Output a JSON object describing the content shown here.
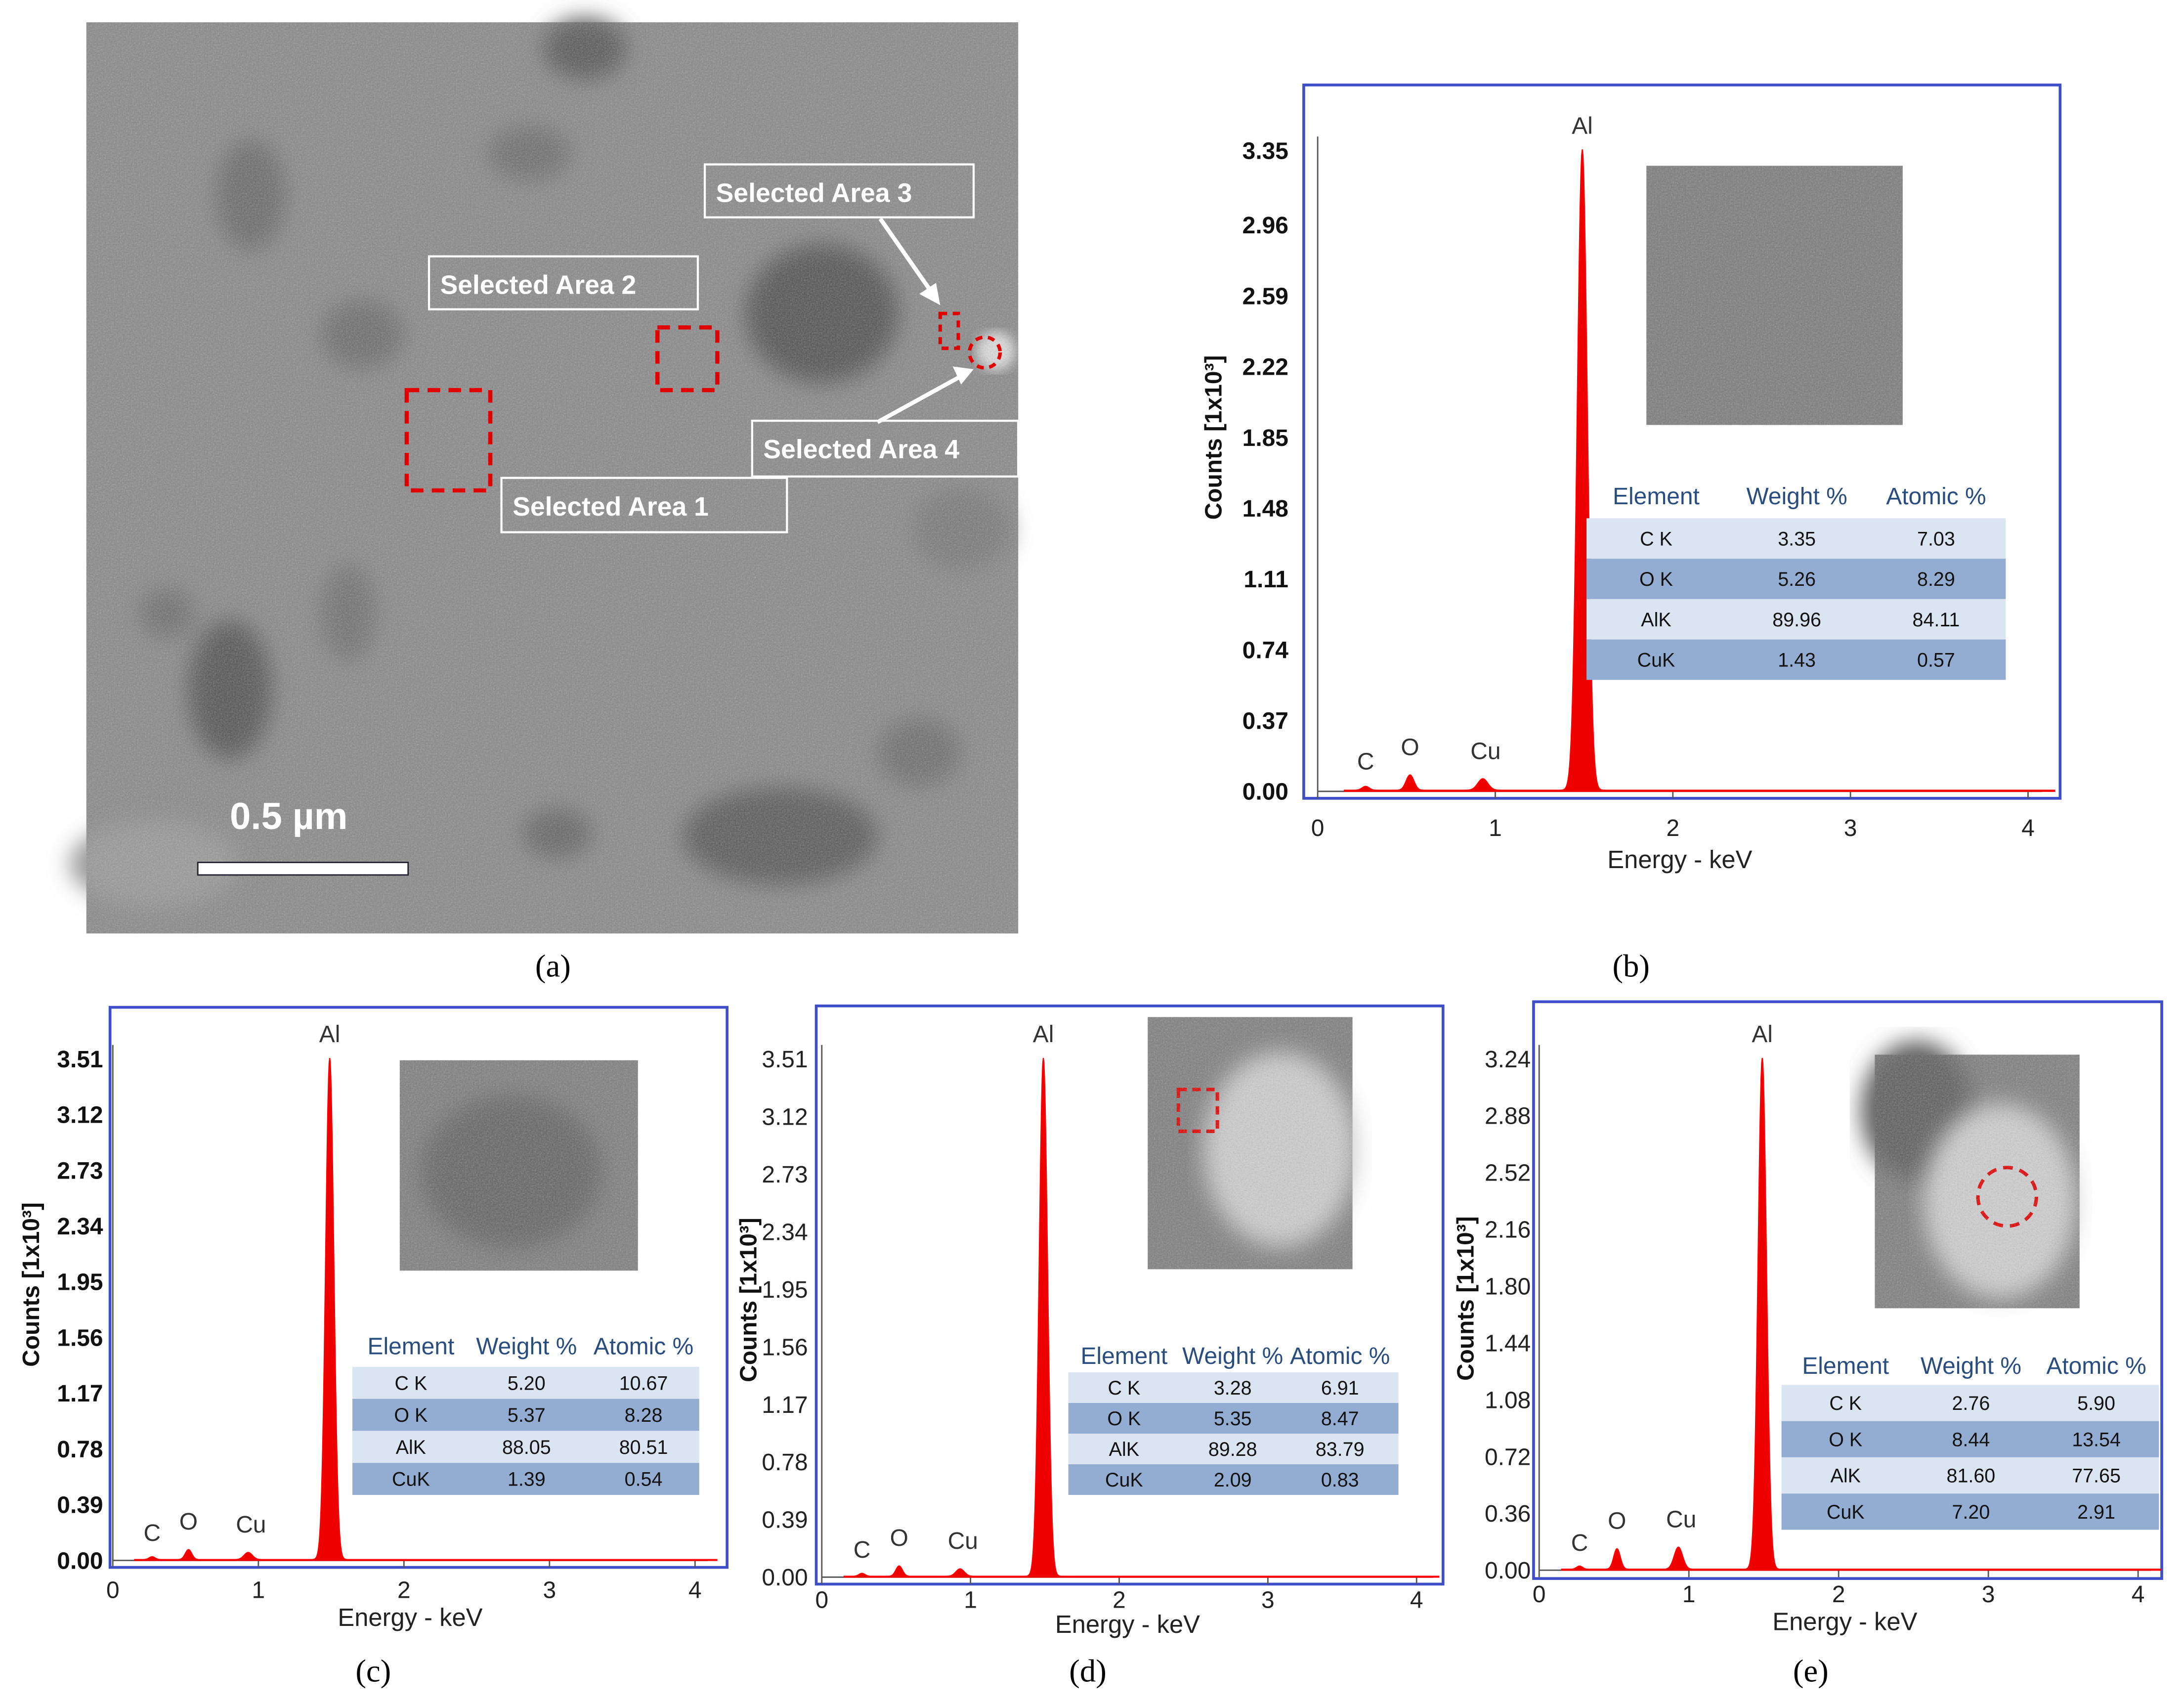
{
  "captions": [
    "(a)",
    "(b)",
    "(c)",
    "(d)",
    "(e)"
  ],
  "sem": {
    "scale_bar_label": "0.5 µm",
    "areas": [
      "Selected Area 1",
      "Selected Area 2",
      "Selected Area 3",
      "Selected Area 4"
    ]
  },
  "chart_data": [
    {
      "panel": "b",
      "type": "line",
      "xlabel": "Energy - keV",
      "ylabel": "Counts [1x10³]",
      "xticks": [
        "0",
        "1",
        "2",
        "3",
        "4"
      ],
      "xlim": [
        0,
        4.2
      ],
      "yticks": [
        "0.00",
        "0.37",
        "0.74",
        "1.11",
        "1.48",
        "1.85",
        "2.22",
        "2.59",
        "2.96",
        "3.35"
      ],
      "ylim": [
        0,
        3.35
      ],
      "peak_labels": [
        "C",
        "O",
        "Cu",
        "Al"
      ],
      "peaks": [
        {
          "label": "C",
          "x": 0.27,
          "y": 0.02
        },
        {
          "label": "O",
          "x": 0.52,
          "y": 0.08
        },
        {
          "label": "Cu",
          "x": 0.93,
          "y": 0.06
        },
        {
          "label": "Al",
          "x": 1.49,
          "y": 3.35
        }
      ],
      "table": {
        "headers": [
          "Element",
          "Weight %",
          "Atomic %"
        ],
        "rows": [
          [
            "C K",
            "3.35",
            "7.03"
          ],
          [
            "O K",
            "5.26",
            "8.29"
          ],
          [
            "AlK",
            "89.96",
            "84.11"
          ],
          [
            "CuK",
            "1.43",
            "0.57"
          ]
        ]
      }
    },
    {
      "panel": "c",
      "type": "line",
      "xlabel": "Energy - keV",
      "ylabel": "Counts [1x10³]",
      "xticks": [
        "0",
        "1",
        "2",
        "3",
        "4"
      ],
      "xlim": [
        0,
        4.2
      ],
      "yticks": [
        "0.00",
        "0.39",
        "0.78",
        "1.17",
        "1.56",
        "1.95",
        "2.34",
        "2.73",
        "3.12",
        "3.51"
      ],
      "ylim": [
        0,
        3.51
      ],
      "peak_labels": [
        "C",
        "O",
        "Cu",
        "Al"
      ],
      "peaks": [
        {
          "label": "C",
          "x": 0.27,
          "y": 0.02
        },
        {
          "label": "O",
          "x": 0.52,
          "y": 0.07
        },
        {
          "label": "Cu",
          "x": 0.93,
          "y": 0.05
        },
        {
          "label": "Al",
          "x": 1.49,
          "y": 3.51
        }
      ],
      "table": {
        "headers": [
          "Element",
          "Weight %",
          "Atomic %"
        ],
        "rows": [
          [
            "C K",
            "5.20",
            "10.67"
          ],
          [
            "O K",
            "5.37",
            "8.28"
          ],
          [
            "AlK",
            "88.05",
            "80.51"
          ],
          [
            "CuK",
            "1.39",
            "0.54"
          ]
        ]
      }
    },
    {
      "panel": "d",
      "type": "line",
      "xlabel": "Energy - keV",
      "ylabel": "Counts [1x10³]",
      "xticks": [
        "0",
        "1",
        "2",
        "3",
        "4"
      ],
      "xlim": [
        0,
        4.2
      ],
      "yticks": [
        "0.00",
        "0.39",
        "0.78",
        "1.17",
        "1.56",
        "1.95",
        "2.34",
        "2.73",
        "3.12",
        "3.51"
      ],
      "ylim": [
        0,
        3.51
      ],
      "peak_labels": [
        "C",
        "O",
        "Cu",
        "Al"
      ],
      "peaks": [
        {
          "label": "C",
          "x": 0.27,
          "y": 0.02
        },
        {
          "label": "O",
          "x": 0.52,
          "y": 0.07
        },
        {
          "label": "Cu",
          "x": 0.93,
          "y": 0.05
        },
        {
          "label": "Al",
          "x": 1.49,
          "y": 3.51
        }
      ],
      "table": {
        "headers": [
          "Element",
          "Weight %",
          "Atomic %"
        ],
        "rows": [
          [
            "C K",
            "3.28",
            "6.91"
          ],
          [
            "O K",
            "5.35",
            "8.47"
          ],
          [
            "AlK",
            "89.28",
            "83.79"
          ],
          [
            "CuK",
            "2.09",
            "0.83"
          ]
        ]
      }
    },
    {
      "panel": "e",
      "type": "line",
      "xlabel": "Energy - keV",
      "ylabel": "Counts [1x10³]",
      "xticks": [
        "0",
        "1",
        "2",
        "3",
        "4"
      ],
      "xlim": [
        0,
        4.2
      ],
      "yticks": [
        "0.00",
        "0.36",
        "0.72",
        "1.08",
        "1.44",
        "1.80",
        "2.16",
        "2.52",
        "2.88",
        "3.24"
      ],
      "ylim": [
        0,
        3.24
      ],
      "peak_labels": [
        "C",
        "O",
        "Cu",
        "Al"
      ],
      "peaks": [
        {
          "label": "C",
          "x": 0.27,
          "y": 0.02
        },
        {
          "label": "O",
          "x": 0.52,
          "y": 0.13
        },
        {
          "label": "Cu",
          "x": 0.93,
          "y": 0.14
        },
        {
          "label": "Al",
          "x": 1.49,
          "y": 3.24
        }
      ],
      "table": {
        "headers": [
          "Element",
          "Weight %",
          "Atomic %"
        ],
        "rows": [
          [
            "C K",
            "2.76",
            "5.90"
          ],
          [
            "O K",
            "8.44",
            "13.54"
          ],
          [
            "AlK",
            "81.60",
            "77.65"
          ],
          [
            "CuK",
            "7.20",
            "2.91"
          ]
        ]
      }
    }
  ]
}
